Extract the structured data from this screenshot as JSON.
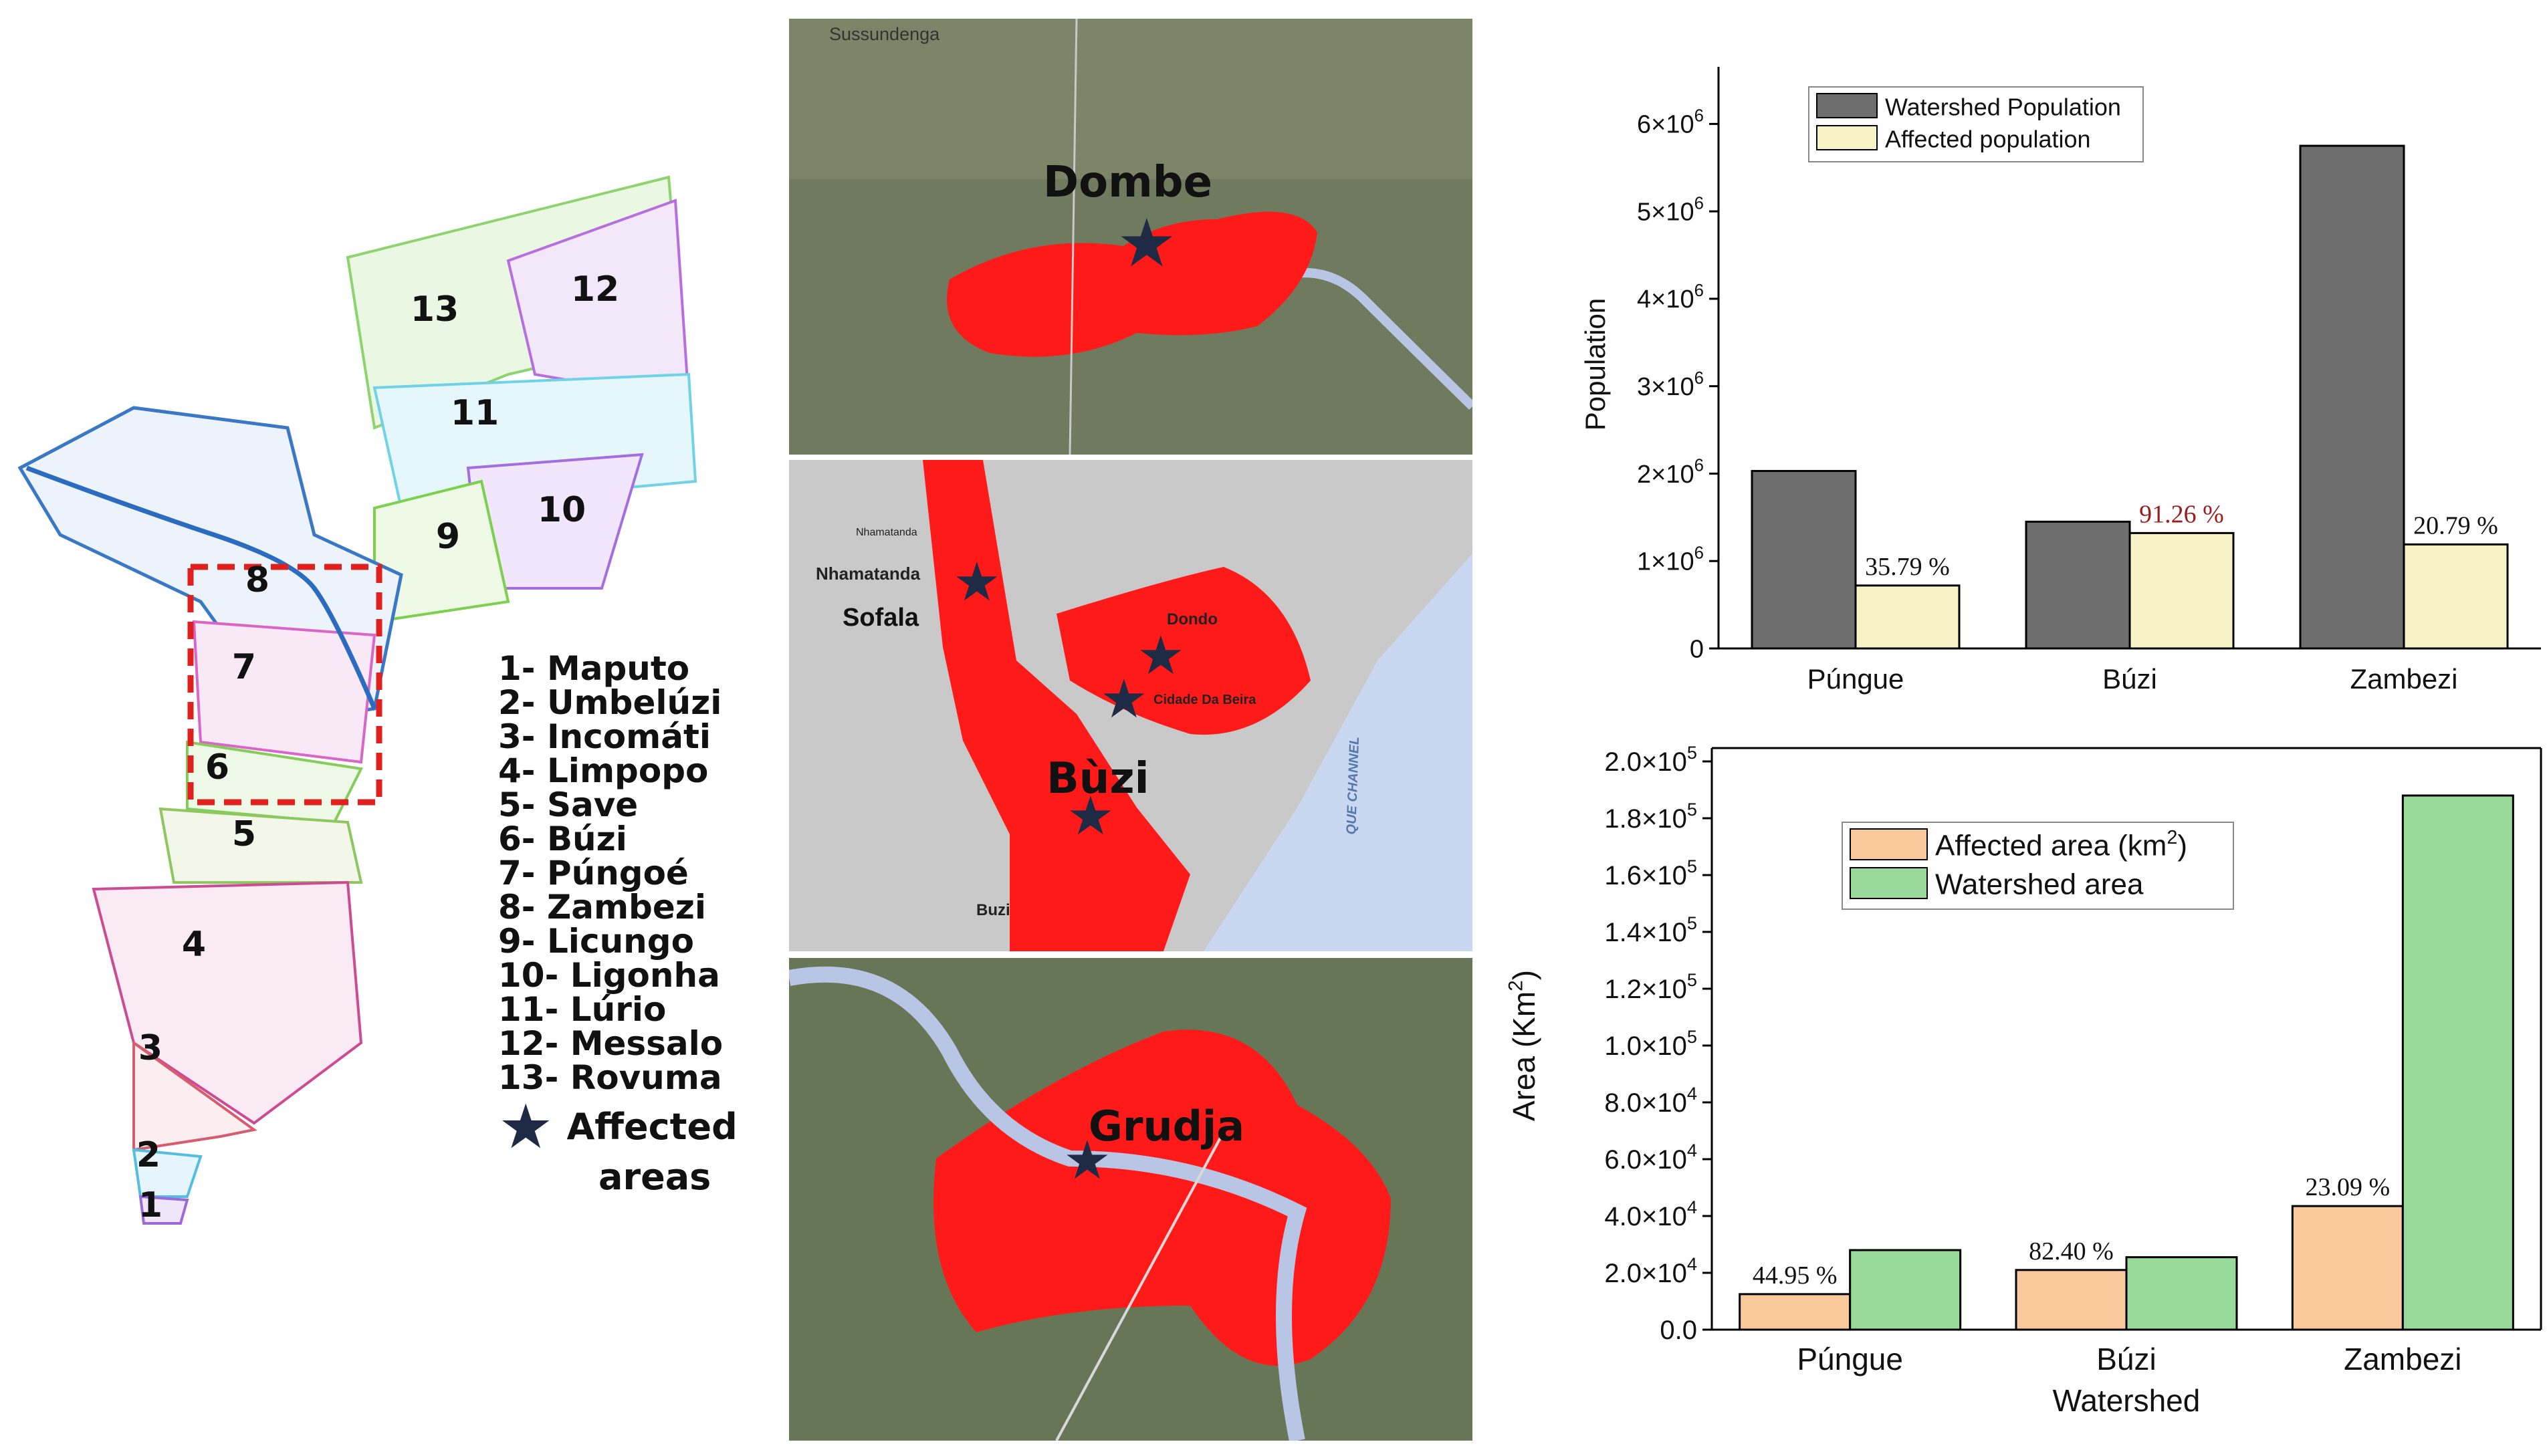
{
  "colors": {
    "watershed_population": "#6e6e6e",
    "affected_population": "#f7f3c6",
    "affected_area": "#f9c99b",
    "watershed_area": "#99d99a",
    "flood": "#ff1a1a",
    "star": "#1f2a44",
    "box": "#e0201e",
    "pct_top": "#9b1c1c"
  },
  "map": {
    "basin_numbers": [
      "1",
      "2",
      "3",
      "4",
      "5",
      "6",
      "7",
      "8",
      "9",
      "10",
      "11",
      "12",
      "13"
    ],
    "legend": [
      "1- Maputo",
      "2- Umbelúzi",
      "3- Incomáti",
      "4- Limpopo",
      "5- Save",
      "6- Búzi",
      "7- Púngoé",
      "8- Zambezi",
      "9- Licungo",
      "10- Ligonha",
      "11- Lúrio",
      "12- Messalo",
      "13- Rovuma"
    ],
    "affected_label_1": "Affected",
    "affected_label_2": "areas",
    "star_icon": "star-icon"
  },
  "tiles": {
    "dombe": {
      "site": "Dombe",
      "place": "Sussundenga"
    },
    "buzi": {
      "site": "Bùzi",
      "places": [
        "Nhamatanda",
        "Sofala",
        "Dondo",
        "Cidade Da Beira",
        "Buzi",
        "Nhamatanda"
      ],
      "channel": "QUE CHANNEL"
    },
    "grudja": {
      "site": "Grudja"
    }
  },
  "chart_data": [
    {
      "type": "bar",
      "categories": [
        "Púngue",
        "Búzi",
        "Zambezi"
      ],
      "series": [
        {
          "name": "Watershed Population",
          "values": [
            2030000,
            1450000,
            5750000
          ]
        },
        {
          "name": "Affected population",
          "values": [
            720000,
            1320000,
            1190000
          ]
        }
      ],
      "annotations": [
        "35.79 %",
        "91.26 %",
        "20.79 %"
      ],
      "ylabel": "Population",
      "xlabel": "",
      "ylim": [
        0,
        6500000
      ],
      "yticks": [
        "0",
        "1×10^6",
        "2×10^6",
        "3×10^6",
        "4×10^6",
        "5×10^6",
        "6×10^6"
      ],
      "legend_position": "top-left"
    },
    {
      "type": "bar",
      "categories": [
        "Púngue",
        "Búzi",
        "Zambezi"
      ],
      "series": [
        {
          "name": "Affected area (km^2)",
          "values": [
            12500,
            21000,
            43500
          ]
        },
        {
          "name": "Watershed area",
          "values": [
            28000,
            25500,
            188000
          ]
        }
      ],
      "annotations": [
        "44.95 %",
        "82.40 %",
        "23.09 %"
      ],
      "ylabel": "Area (Km^2)",
      "xlabel": "Watershed",
      "ylim": [
        0,
        200000
      ],
      "yticks": [
        "0.0",
        "2.0×10^4",
        "4.0×10^4",
        "6.0×10^4",
        "8.0×10^4",
        "1.0×10^5",
        "1.2×10^5",
        "1.4×10^5",
        "1.6×10^5",
        "1.8×10^5",
        "2.0×10^5"
      ],
      "legend_position": "top-center"
    }
  ]
}
